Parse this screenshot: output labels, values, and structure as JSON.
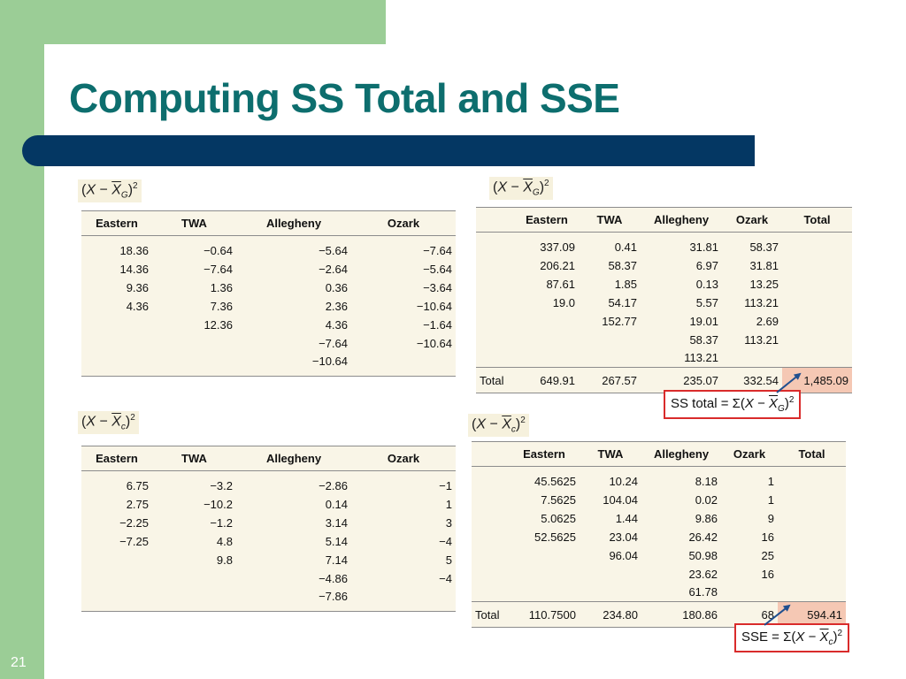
{
  "slide": {
    "title": "Computing SS Total and SSE",
    "page_number": "21"
  },
  "captions": {
    "t1": {
      "open": "(",
      "x": "X",
      "minus": " − ",
      "xbar": "X",
      "sub": "G",
      "close": ")",
      "sup": "2"
    },
    "t2": {
      "open": "(",
      "x": "X",
      "minus": " − ",
      "xbar": "X",
      "sub": "G",
      "close": ")",
      "sup": "2"
    },
    "t3": {
      "open": "(",
      "x": "X",
      "minus": " − ",
      "xbar": "X",
      "sub": "c",
      "close": ")",
      "sup": "2"
    },
    "t4": {
      "open": "(",
      "x": "X",
      "minus": " − ",
      "xbar": "X",
      "sub": "c",
      "close": ")",
      "sup": "2"
    }
  },
  "table1": {
    "headers": [
      "Eastern",
      "TWA",
      "Allegheny",
      "Ozark"
    ],
    "rows": [
      [
        "18.36",
        "−0.64",
        "−5.64",
        "−7.64"
      ],
      [
        "14.36",
        "−7.64",
        "−2.64",
        "−5.64"
      ],
      [
        "9.36",
        "1.36",
        "0.36",
        "−3.64"
      ],
      [
        "4.36",
        "7.36",
        "2.36",
        "−10.64"
      ],
      [
        "",
        "12.36",
        "4.36",
        "−1.64"
      ],
      [
        "",
        "",
        "−7.64",
        "−10.64"
      ],
      [
        "",
        "",
        "−10.64",
        ""
      ]
    ]
  },
  "table2": {
    "headers": [
      "",
      "Eastern",
      "TWA",
      "Allegheny",
      "Ozark",
      "Total"
    ],
    "rows": [
      [
        "",
        "337.09",
        "0.41",
        "31.81",
        "58.37",
        ""
      ],
      [
        "",
        "206.21",
        "58.37",
        "6.97",
        "31.81",
        ""
      ],
      [
        "",
        "87.61",
        "1.85",
        "0.13",
        "13.25",
        ""
      ],
      [
        "",
        "19.0",
        "54.17",
        "5.57",
        "113.21",
        ""
      ],
      [
        "",
        "",
        "152.77",
        "19.01",
        "2.69",
        ""
      ],
      [
        "",
        "",
        "",
        "58.37",
        "113.21",
        ""
      ],
      [
        "",
        "",
        "",
        "113.21",
        "",
        ""
      ]
    ],
    "total_row": [
      "Total",
      "649.91",
      "267.57",
      "235.07",
      "332.54",
      "1,485.09"
    ]
  },
  "table3": {
    "headers": [
      "Eastern",
      "TWA",
      "Allegheny",
      "Ozark"
    ],
    "rows": [
      [
        "6.75",
        "−3.2",
        "−2.86",
        "−1"
      ],
      [
        "2.75",
        "−10.2",
        "0.14",
        "1"
      ],
      [
        "−2.25",
        "−1.2",
        "3.14",
        "3"
      ],
      [
        "−7.25",
        "4.8",
        "5.14",
        "−4"
      ],
      [
        "",
        "9.8",
        "7.14",
        "5"
      ],
      [
        "",
        "",
        "−4.86",
        "−4"
      ],
      [
        "",
        "",
        "−7.86",
        ""
      ]
    ]
  },
  "table4": {
    "headers": [
      "",
      "Eastern",
      "TWA",
      "Allegheny",
      "Ozark",
      "Total"
    ],
    "rows": [
      [
        "",
        "45.5625",
        "10.24",
        "8.18",
        "1",
        ""
      ],
      [
        "",
        "7.5625",
        "104.04",
        "0.02",
        "1",
        ""
      ],
      [
        "",
        "5.0625",
        "1.44",
        "9.86",
        "9",
        ""
      ],
      [
        "",
        "52.5625",
        "23.04",
        "26.42",
        "16",
        ""
      ],
      [
        "",
        "",
        "96.04",
        "50.98",
        "25",
        ""
      ],
      [
        "",
        "",
        "",
        "23.62",
        "16",
        ""
      ],
      [
        "",
        "",
        "",
        "61.78",
        "",
        ""
      ]
    ],
    "total_row": [
      "Total",
      "110.7500",
      "234.80",
      "180.86",
      "68",
      "594.41"
    ]
  },
  "formulas": {
    "ss_total": {
      "lhs": "SS total = ",
      "sigma": "Σ",
      "open": "(",
      "x": "X",
      "minus": " − ",
      "xbar": "X",
      "sub": "G",
      "close": ")",
      "sup": "2"
    },
    "sse": {
      "lhs": "SSE = ",
      "sigma": "Σ",
      "open": "(",
      "x": "X",
      "minus": " − ",
      "xbar": "X",
      "sub": "c",
      "close": ")",
      "sup": "2"
    }
  },
  "colors": {
    "title": "#0d6e6e",
    "accent_bar": "#043763",
    "side_green": "#9bcd96",
    "table_bg": "#f9f5e7",
    "highlight": "#f5c8b4",
    "formula_border": "#d92b2b",
    "arrow": "#1f4f8f"
  }
}
